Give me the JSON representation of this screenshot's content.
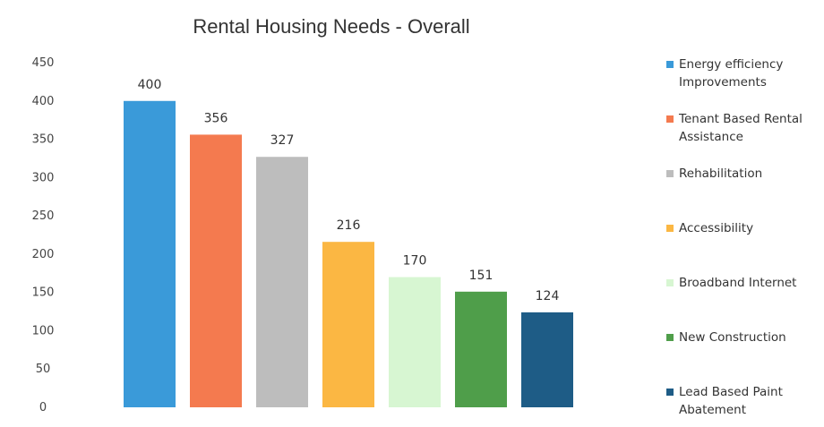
{
  "chart_data": {
    "type": "bar",
    "title": "Rental Housing Needs - Overall",
    "xlabel": "",
    "ylabel": "",
    "ylim": [
      0,
      450
    ],
    "y_ticks": [
      0,
      50,
      100,
      150,
      200,
      250,
      300,
      350,
      400,
      450
    ],
    "grid": false,
    "legend_position": "right",
    "categories": [
      "Energy efficiency Improvements",
      "Tenant Based Rental Assistance",
      "Rehabilitation",
      "Accessibility",
      "Broadband Internet",
      "New Construction",
      "Lead Based Paint Abatement"
    ],
    "legend_lines": [
      [
        "Energy efficiency",
        "Improvements"
      ],
      [
        "Tenant Based Rental",
        "Assistance"
      ],
      [
        "Rehabilitation"
      ],
      [
        "Accessibility"
      ],
      [
        "Broadband Internet"
      ],
      [
        "New Construction"
      ],
      [
        "Lead Based Paint",
        "Abatement"
      ]
    ],
    "values": [
      400,
      356,
      327,
      216,
      170,
      151,
      124
    ],
    "colors": [
      "#3a9ad9",
      "#f47a4f",
      "#bdbdbd",
      "#fbb743",
      "#d7f6d2",
      "#4f9e4a",
      "#1e5c86"
    ]
  }
}
